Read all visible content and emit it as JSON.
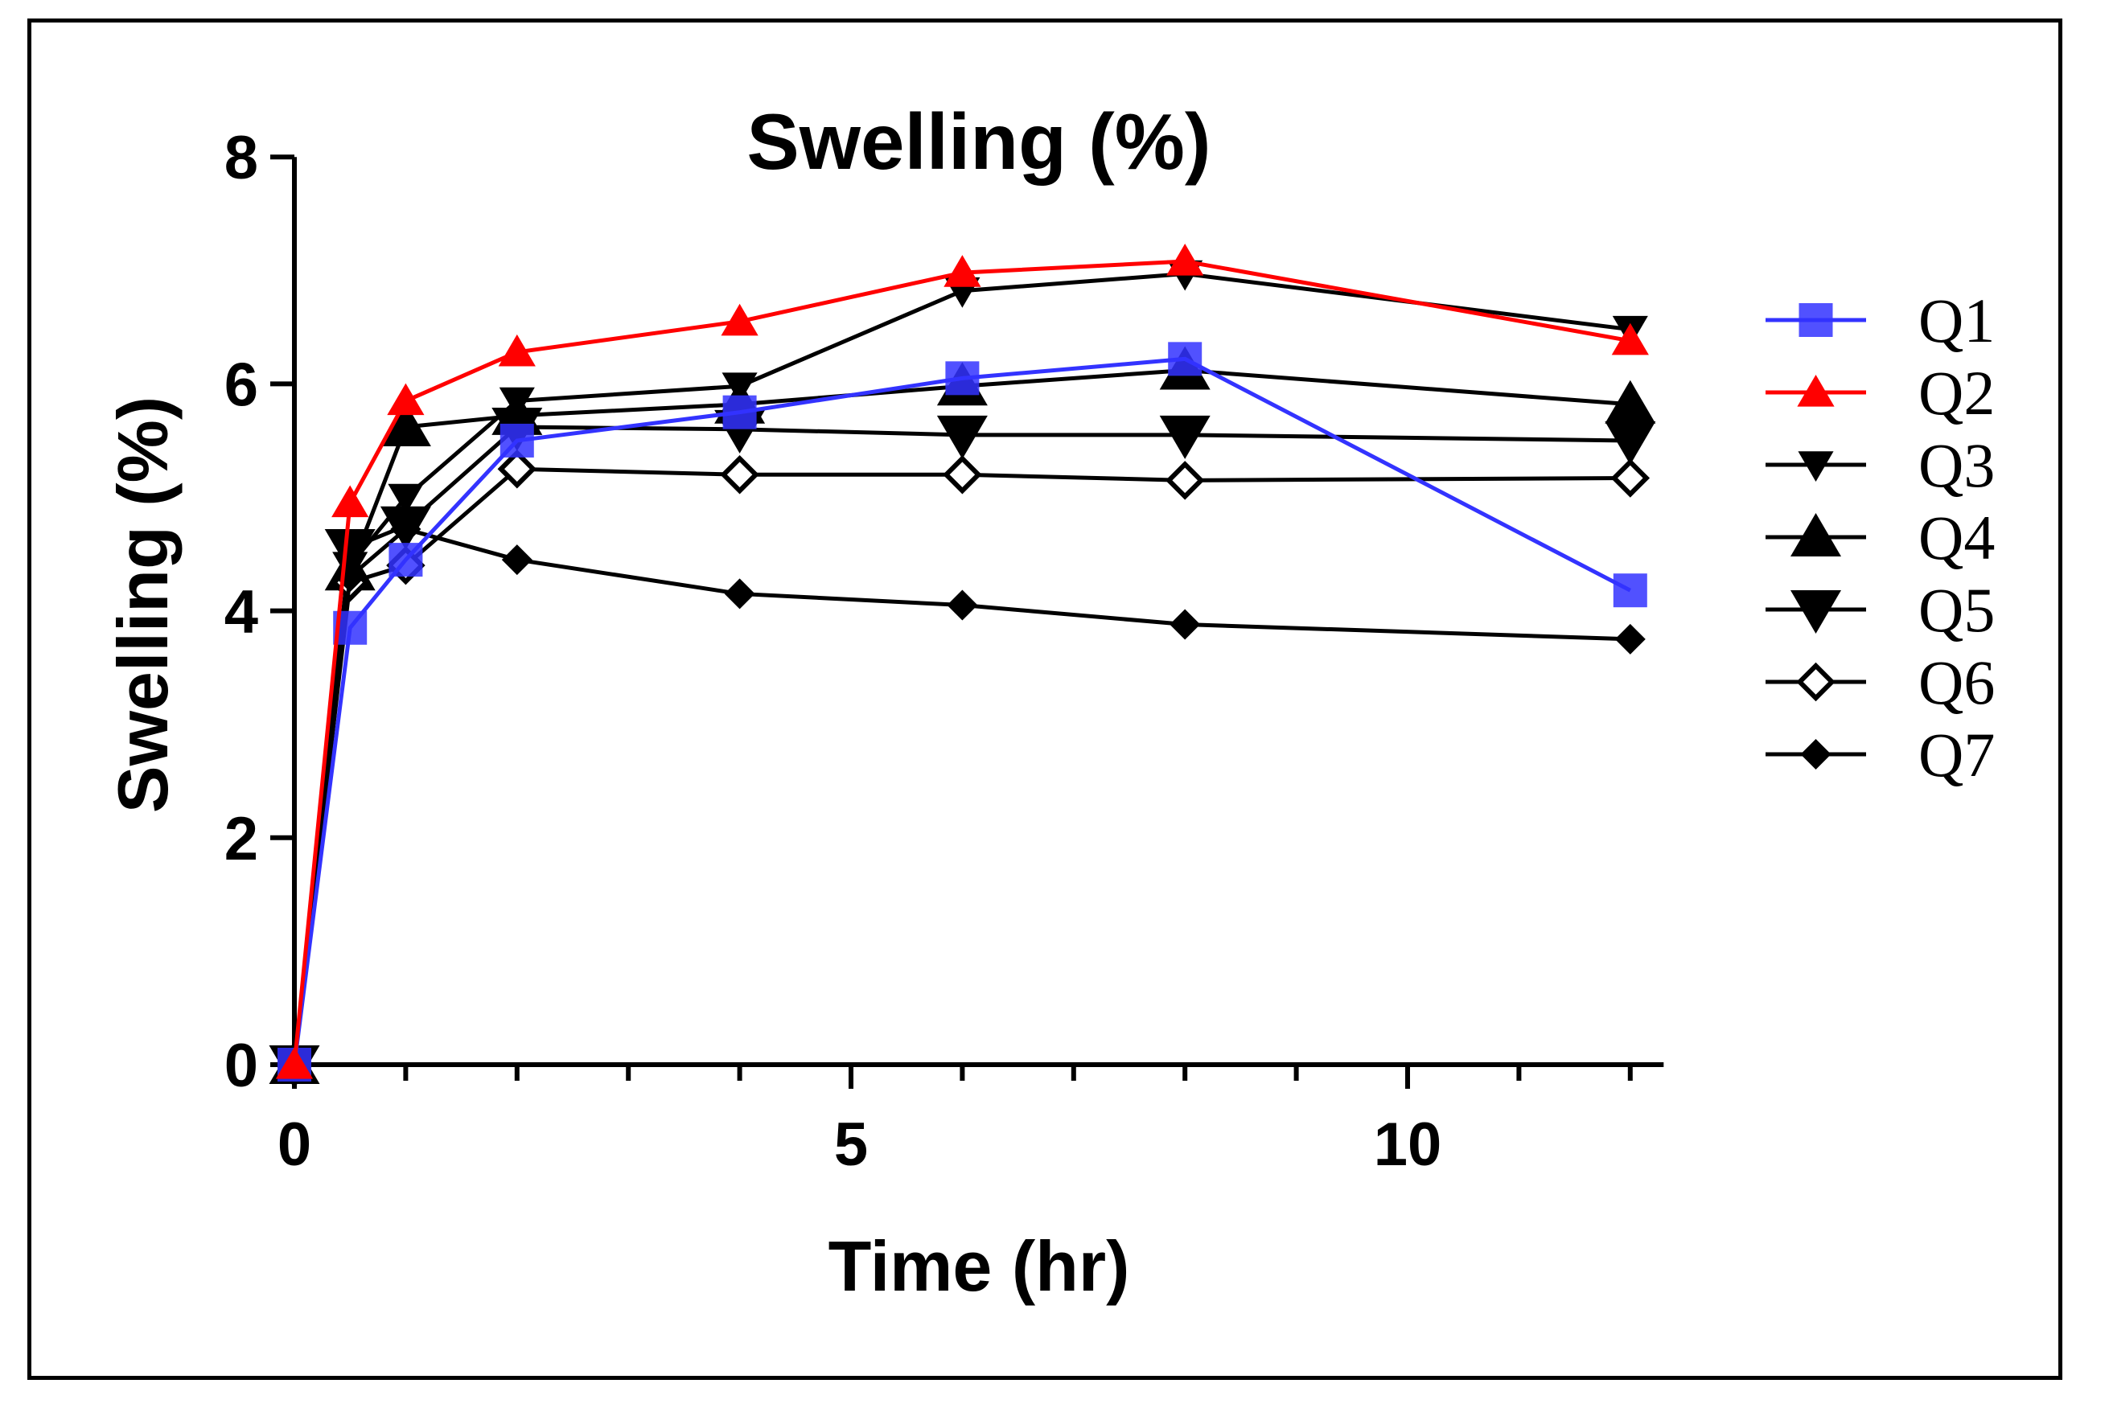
{
  "chart_data": {
    "type": "line",
    "title": "Swelling (%)",
    "xlabel": "Time (hr)",
    "ylabel": "Swelling (%)",
    "xlim": [
      0,
      12.3
    ],
    "ylim": [
      0,
      8
    ],
    "x_major_ticks": [
      0,
      5,
      10
    ],
    "y_major_ticks": [
      0,
      2,
      4,
      6,
      8
    ],
    "x_tick_labels": [
      "0",
      "5",
      "10"
    ],
    "y_tick_labels": [
      "0",
      "2",
      "4",
      "6",
      "8"
    ],
    "x": [
      0,
      0.5,
      1,
      2,
      4,
      6,
      8,
      12
    ],
    "legend_position": "right",
    "series": [
      {
        "name": "Q1",
        "color": "#3333ff",
        "marker": "square",
        "values": [
          0,
          3.85,
          4.45,
          5.5,
          5.75,
          6.05,
          6.22,
          4.18
        ]
      },
      {
        "name": "Q2",
        "color": "#ff0000",
        "marker": "triangle-up",
        "values": [
          0,
          4.95,
          5.85,
          6.28,
          6.55,
          6.98,
          7.08,
          6.38
        ]
      },
      {
        "name": "Q3",
        "color": "#000000",
        "marker": "triangle-down-small",
        "values": [
          0,
          4.4,
          5.0,
          5.85,
          5.98,
          6.82,
          6.97,
          6.48
        ]
      },
      {
        "name": "Q4",
        "color": "#000000",
        "marker": "triangle-up-large",
        "values": [
          0,
          4.35,
          5.62,
          5.72,
          5.82,
          5.98,
          6.12,
          5.82
        ]
      },
      {
        "name": "Q5",
        "color": "#000000",
        "marker": "triangle-down-large",
        "values": [
          0,
          4.55,
          4.75,
          5.62,
          5.6,
          5.55,
          5.55,
          5.5
        ]
      },
      {
        "name": "Q6",
        "color": "#000000",
        "marker": "diamond-open",
        "values": [
          0,
          4.25,
          4.4,
          5.25,
          5.2,
          5.2,
          5.15,
          5.17
        ]
      },
      {
        "name": "Q7",
        "color": "#000000",
        "marker": "diamond",
        "values": [
          0,
          4.3,
          4.72,
          4.45,
          4.15,
          4.05,
          3.88,
          3.75
        ]
      }
    ]
  }
}
